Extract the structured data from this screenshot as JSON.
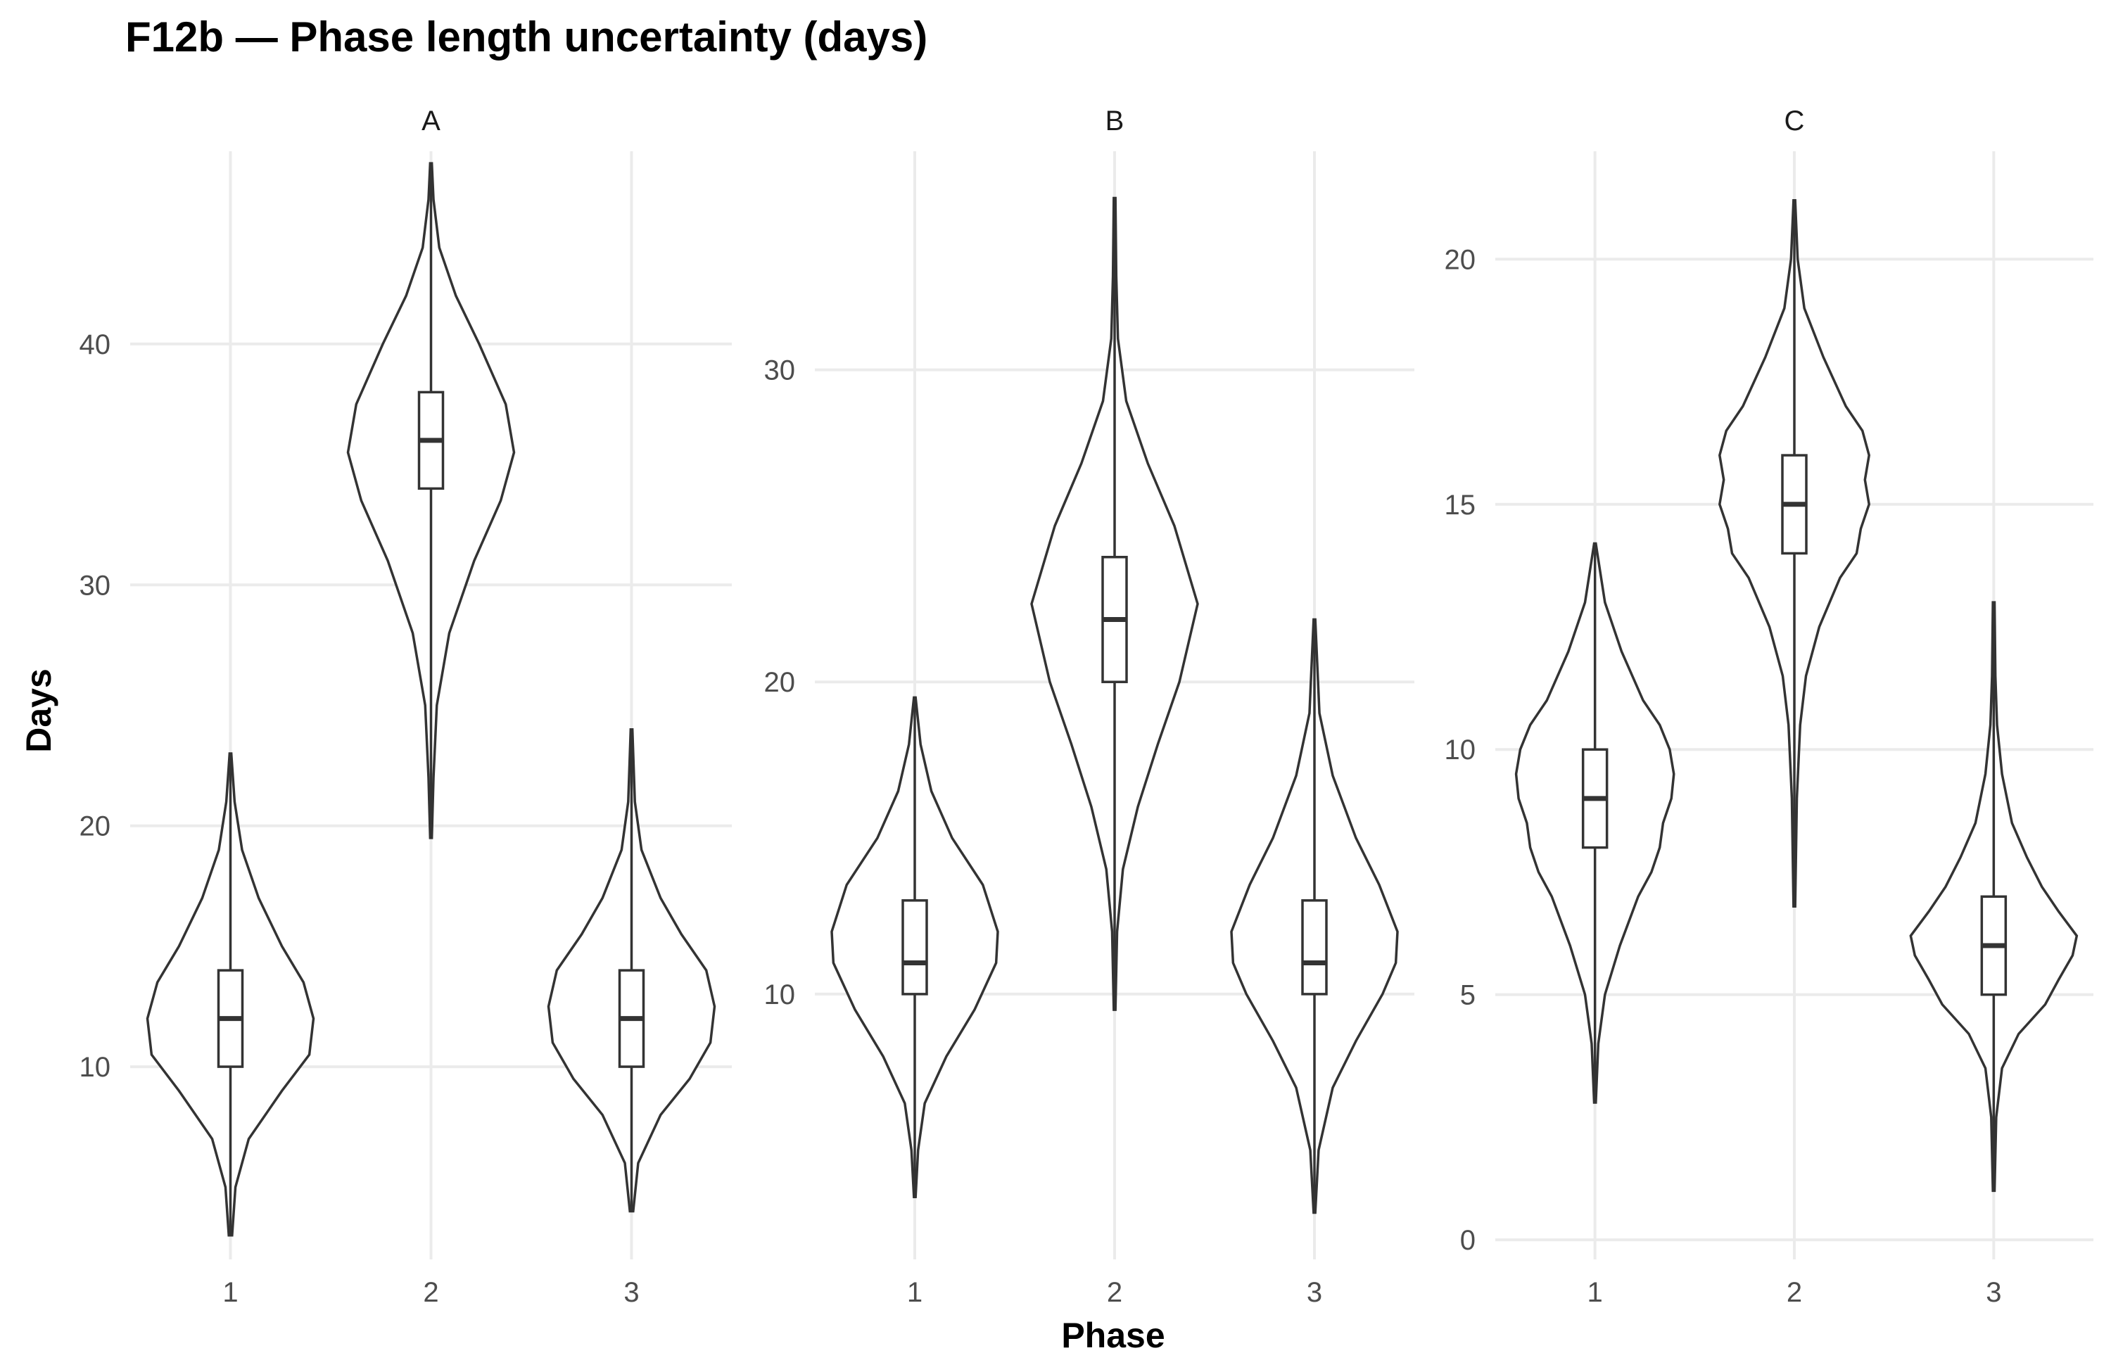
{
  "title": "F12b — Phase length uncertainty (days)",
  "chart_data": {
    "type": "violin",
    "title": "F12b — Phase length uncertainty (days)",
    "xlabel": "Phase",
    "ylabel": "Days",
    "categories": [
      "1",
      "2",
      "3"
    ],
    "grid": true,
    "facets": [
      {
        "name": "A",
        "ylim": [
          2,
          48
        ],
        "yticks": [
          10,
          20,
          30,
          40
        ],
        "groups": [
          {
            "phase": "1",
            "min": 3,
            "q1": 10,
            "median": 12,
            "q3": 14,
            "max": 23,
            "density": [
              [
                3,
                0.02
              ],
              [
                5,
                0.06
              ],
              [
                7,
                0.22
              ],
              [
                9,
                0.62
              ],
              [
                10.5,
                0.95
              ],
              [
                12,
                1.0
              ],
              [
                13.5,
                0.88
              ],
              [
                15,
                0.62
              ],
              [
                17,
                0.34
              ],
              [
                19,
                0.14
              ],
              [
                21,
                0.05
              ],
              [
                23,
                0.01
              ]
            ]
          },
          {
            "phase": "2",
            "min": 19.5,
            "q1": 34,
            "median": 36,
            "q3": 38,
            "max": 47.5,
            "density": [
              [
                19.5,
                0.01
              ],
              [
                22,
                0.03
              ],
              [
                25,
                0.07
              ],
              [
                28,
                0.22
              ],
              [
                31,
                0.52
              ],
              [
                33.5,
                0.84
              ],
              [
                35.5,
                1.0
              ],
              [
                37.5,
                0.9
              ],
              [
                40,
                0.58
              ],
              [
                42,
                0.3
              ],
              [
                44,
                0.1
              ],
              [
                46,
                0.03
              ],
              [
                47.5,
                0.01
              ]
            ]
          },
          {
            "phase": "3",
            "min": 4,
            "q1": 10,
            "median": 12,
            "q3": 14,
            "max": 24,
            "density": [
              [
                4,
                0.02
              ],
              [
                6,
                0.08
              ],
              [
                8,
                0.35
              ],
              [
                9.5,
                0.7
              ],
              [
                11,
                0.95
              ],
              [
                12.5,
                1.0
              ],
              [
                14,
                0.9
              ],
              [
                15.5,
                0.6
              ],
              [
                17,
                0.35
              ],
              [
                19,
                0.12
              ],
              [
                21,
                0.04
              ],
              [
                24,
                0.01
              ]
            ]
          }
        ]
      },
      {
        "name": "B",
        "ylim": [
          1.5,
          37
        ],
        "yticks": [
          10,
          20,
          30
        ],
        "groups": [
          {
            "phase": "1",
            "min": 3.5,
            "q1": 10,
            "median": 11,
            "q3": 13,
            "max": 19.5,
            "density": [
              [
                3.5,
                0.01
              ],
              [
                5,
                0.04
              ],
              [
                6.5,
                0.12
              ],
              [
                8,
                0.38
              ],
              [
                9.5,
                0.72
              ],
              [
                11,
                0.98
              ],
              [
                12,
                1.0
              ],
              [
                13.5,
                0.82
              ],
              [
                15,
                0.45
              ],
              [
                16.5,
                0.2
              ],
              [
                18,
                0.07
              ],
              [
                19.5,
                0.01
              ]
            ]
          },
          {
            "phase": "2",
            "min": 9.5,
            "q1": 20,
            "median": 22,
            "q3": 24,
            "max": 35.5,
            "density": [
              [
                9.5,
                0.01
              ],
              [
                12,
                0.03
              ],
              [
                14,
                0.1
              ],
              [
                16,
                0.28
              ],
              [
                18,
                0.52
              ],
              [
                20,
                0.78
              ],
              [
                22.5,
                1.0
              ],
              [
                25,
                0.72
              ],
              [
                27,
                0.4
              ],
              [
                29,
                0.14
              ],
              [
                31,
                0.04
              ],
              [
                33,
                0.02
              ],
              [
                35.5,
                0.01
              ]
            ]
          },
          {
            "phase": "3",
            "min": 3,
            "q1": 10,
            "median": 11,
            "q3": 13,
            "max": 22,
            "density": [
              [
                3,
                0.01
              ],
              [
                5,
                0.05
              ],
              [
                7,
                0.22
              ],
              [
                8.5,
                0.5
              ],
              [
                10,
                0.82
              ],
              [
                11,
                0.98
              ],
              [
                12,
                1.0
              ],
              [
                13.5,
                0.78
              ],
              [
                15,
                0.5
              ],
              [
                17,
                0.22
              ],
              [
                19,
                0.06
              ],
              [
                22,
                0.01
              ]
            ]
          }
        ]
      },
      {
        "name": "C",
        "ylim": [
          -0.4,
          22.2
        ],
        "yticks": [
          0,
          5,
          10,
          15,
          20
        ],
        "groups": [
          {
            "phase": "1",
            "min": 2.8,
            "q1": 8,
            "median": 9,
            "q3": 10,
            "max": 14.2,
            "density": [
              [
                2.8,
                0.01
              ],
              [
                4,
                0.04
              ],
              [
                5,
                0.12
              ],
              [
                6,
                0.3
              ],
              [
                7,
                0.52
              ],
              [
                7.5,
                0.68
              ],
              [
                8,
                0.78
              ],
              [
                8.5,
                0.82
              ],
              [
                9,
                0.92
              ],
              [
                9.5,
                0.95
              ],
              [
                10,
                0.9
              ],
              [
                10.5,
                0.78
              ],
              [
                11,
                0.58
              ],
              [
                12,
                0.32
              ],
              [
                13,
                0.12
              ],
              [
                14.2,
                0.01
              ]
            ]
          },
          {
            "phase": "2",
            "min": 6.8,
            "q1": 14,
            "median": 15,
            "q3": 16,
            "max": 21.2,
            "density": [
              [
                6.8,
                0.01
              ],
              [
                9,
                0.03
              ],
              [
                10.5,
                0.07
              ],
              [
                11.5,
                0.14
              ],
              [
                12.5,
                0.3
              ],
              [
                13.5,
                0.55
              ],
              [
                14,
                0.75
              ],
              [
                14.5,
                0.8
              ],
              [
                15,
                0.9
              ],
              [
                15.5,
                0.85
              ],
              [
                16,
                0.9
              ],
              [
                16.5,
                0.82
              ],
              [
                17,
                0.62
              ],
              [
                18,
                0.35
              ],
              [
                19,
                0.12
              ],
              [
                20,
                0.04
              ],
              [
                21.2,
                0.01
              ]
            ]
          },
          {
            "phase": "3",
            "min": 1,
            "q1": 5,
            "median": 6,
            "q3": 7,
            "max": 13,
            "density": [
              [
                1,
                0.01
              ],
              [
                2.5,
                0.03
              ],
              [
                3.5,
                0.1
              ],
              [
                4.2,
                0.3
              ],
              [
                4.8,
                0.62
              ],
              [
                5.3,
                0.78
              ],
              [
                5.8,
                0.95
              ],
              [
                6.2,
                1.0
              ],
              [
                6.7,
                0.78
              ],
              [
                7.2,
                0.58
              ],
              [
                7.8,
                0.4
              ],
              [
                8.5,
                0.22
              ],
              [
                9.5,
                0.1
              ],
              [
                10.5,
                0.04
              ],
              [
                11.5,
                0.02
              ],
              [
                13,
                0.01
              ]
            ]
          }
        ]
      }
    ]
  }
}
